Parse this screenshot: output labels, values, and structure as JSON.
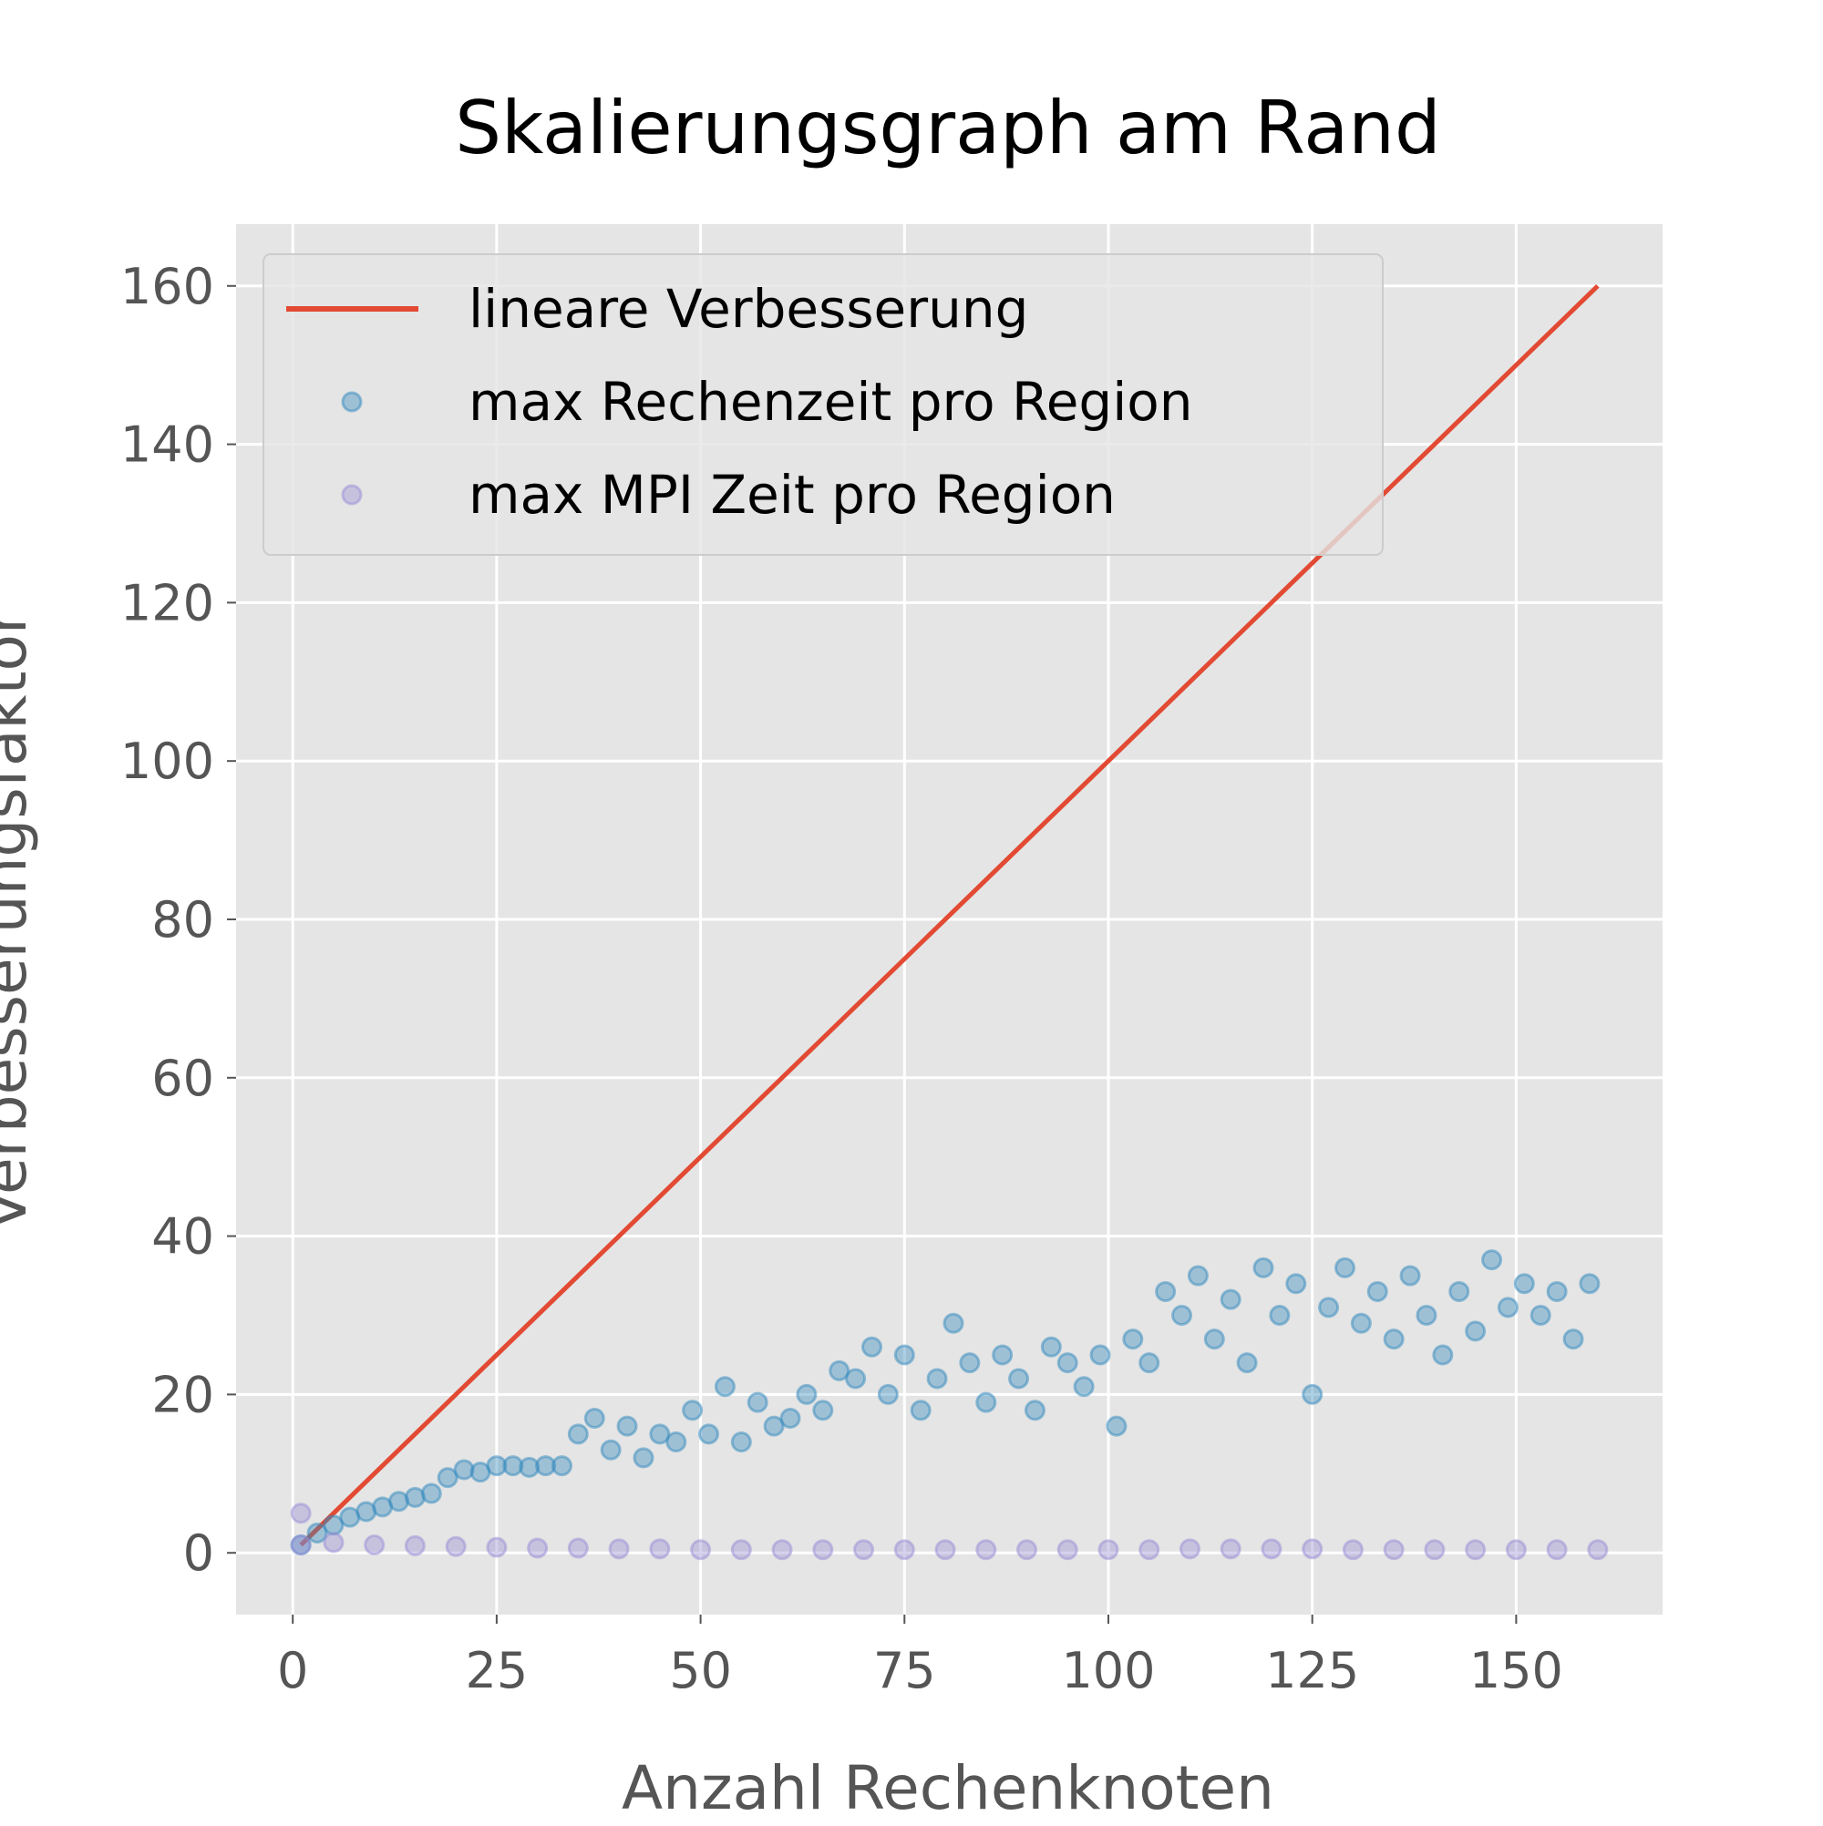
{
  "chart_data": {
    "type": "scatter",
    "title": "Skalierungsgraph am Rand",
    "xlabel": "Anzahl Rechenknoten",
    "ylabel": "Verbesserungsfaktor",
    "xlim": [
      -6.95,
      167.95
    ],
    "ylim": [
      -7.8,
      167.8
    ],
    "xticks": [
      0,
      25,
      50,
      75,
      100,
      125,
      150
    ],
    "yticks": [
      0,
      20,
      40,
      60,
      80,
      100,
      120,
      140,
      160
    ],
    "grid": true,
    "legend": "upper left",
    "series": [
      {
        "name": "lineare Verbesserung",
        "type": "line",
        "color": "#e24a33",
        "x": [
          1,
          160
        ],
        "values": [
          1,
          160
        ]
      },
      {
        "name": "max Rechenzeit pro Region",
        "type": "scatter",
        "color": "#348abd",
        "x": [
          1,
          3,
          5,
          7,
          9,
          11,
          13,
          15,
          17,
          19,
          21,
          23,
          25,
          27,
          29,
          31,
          33,
          35,
          37,
          39,
          41,
          43,
          45,
          47,
          49,
          51,
          53,
          55,
          57,
          59,
          61,
          63,
          65,
          67,
          69,
          71,
          73,
          75,
          77,
          79,
          81,
          83,
          85,
          87,
          89,
          91,
          93,
          95,
          97,
          99,
          101,
          103,
          105,
          107,
          109,
          111,
          113,
          115,
          117,
          119,
          121,
          123,
          125,
          127,
          129,
          131,
          133,
          135,
          137,
          139,
          141,
          143,
          145,
          147,
          149,
          151,
          153,
          155,
          157,
          159
        ],
        "values": [
          1,
          2.5,
          3.5,
          4.5,
          5.2,
          5.8,
          6.5,
          7,
          7.5,
          9.5,
          10.5,
          10.2,
          11,
          11,
          10.8,
          11,
          11,
          15,
          17,
          13,
          16,
          12,
          15,
          14,
          18,
          15,
          21,
          14,
          19,
          16,
          17,
          20,
          18,
          23,
          22,
          26,
          20,
          25,
          18,
          22,
          29,
          24,
          19,
          25,
          22,
          18,
          26,
          24,
          21,
          25,
          16,
          27,
          24,
          33,
          30,
          35,
          27,
          32,
          24,
          36,
          30,
          34,
          20,
          31,
          36,
          29,
          33,
          27,
          35,
          30,
          25,
          33,
          28,
          37,
          31,
          34,
          30,
          33,
          27,
          34
        ]
      },
      {
        "name": "max MPI Zeit pro Region",
        "type": "scatter",
        "color": "#988ed5",
        "x": [
          1,
          1,
          5,
          10,
          15,
          20,
          25,
          30,
          35,
          40,
          45,
          50,
          55,
          60,
          65,
          70,
          75,
          80,
          85,
          90,
          95,
          100,
          105,
          110,
          115,
          120,
          125,
          130,
          135,
          140,
          145,
          150,
          155,
          160
        ],
        "values": [
          5,
          1,
          1.3,
          1,
          0.9,
          0.8,
          0.7,
          0.6,
          0.6,
          0.5,
          0.5,
          0.4,
          0.4,
          0.4,
          0.4,
          0.4,
          0.4,
          0.4,
          0.4,
          0.4,
          0.4,
          0.4,
          0.4,
          0.5,
          0.5,
          0.5,
          0.5,
          0.4,
          0.4,
          0.4,
          0.4,
          0.4,
          0.4,
          0.4
        ]
      }
    ]
  }
}
